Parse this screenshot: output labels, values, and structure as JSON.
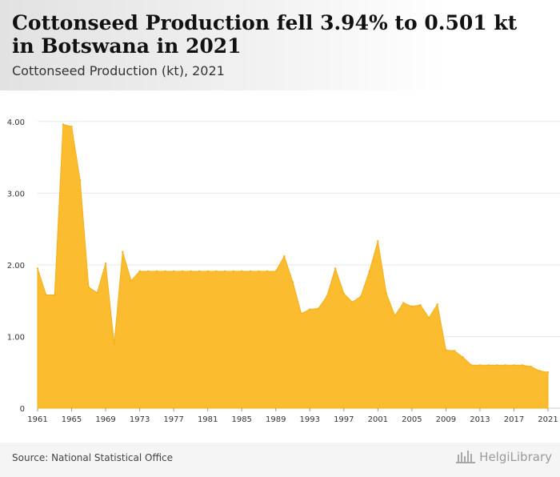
{
  "header": {
    "title": "Cottonseed Production fell 3.94% to 0.501 kt in Botswana in 2021",
    "subtitle": "Cottonseed Production (kt), 2021"
  },
  "footer": {
    "source": "Source: National Statistical Office",
    "logo_text": "HelgiLibrary"
  },
  "colors": {
    "area_fill": "#fbbc2f",
    "area_stroke": "#f4b01a",
    "grid": "#e6e6e6",
    "axis_text": "#333333"
  },
  "chart_data": {
    "type": "area",
    "x": [
      1961,
      1962,
      1963,
      1964,
      1965,
      1966,
      1967,
      1968,
      1969,
      1970,
      1971,
      1972,
      1973,
      1974,
      1975,
      1976,
      1977,
      1978,
      1979,
      1980,
      1981,
      1982,
      1983,
      1984,
      1985,
      1986,
      1987,
      1988,
      1989,
      1990,
      1991,
      1992,
      1993,
      1994,
      1995,
      1996,
      1997,
      1998,
      1999,
      2000,
      2001,
      2002,
      2003,
      2004,
      2005,
      2006,
      2007,
      2008,
      2009,
      2010,
      2011,
      2012,
      2013,
      2014,
      2015,
      2016,
      2017,
      2018,
      2019,
      2020,
      2021
    ],
    "series": [
      {
        "values": [
          1.95,
          1.58,
          1.58,
          3.96,
          3.93,
          3.18,
          1.69,
          1.61,
          2.02,
          0.9,
          2.18,
          1.78,
          1.91,
          1.91,
          1.91,
          1.91,
          1.91,
          1.91,
          1.91,
          1.91,
          1.91,
          1.91,
          1.91,
          1.91,
          1.91,
          1.91,
          1.91,
          1.91,
          1.91,
          2.12,
          1.76,
          1.32,
          1.38,
          1.39,
          1.56,
          1.95,
          1.6,
          1.48,
          1.56,
          1.91,
          2.33,
          1.6,
          1.29,
          1.47,
          1.42,
          1.44,
          1.26,
          1.45,
          0.81,
          0.8,
          0.71,
          0.6,
          0.6,
          0.6,
          0.6,
          0.6,
          0.6,
          0.6,
          0.58,
          0.522,
          0.501
        ]
      }
    ],
    "xticks": [
      "1961",
      "1965",
      "1969",
      "1973",
      "1977",
      "1981",
      "1985",
      "1989",
      "1993",
      "1997",
      "2001",
      "2005",
      "2009",
      "2013",
      "2017",
      "2021"
    ],
    "yticks": [
      "0",
      "1.00",
      "2.00",
      "3.00",
      "4.00"
    ],
    "ylim": [
      0,
      4.2
    ],
    "grid": true,
    "legend": "none"
  }
}
